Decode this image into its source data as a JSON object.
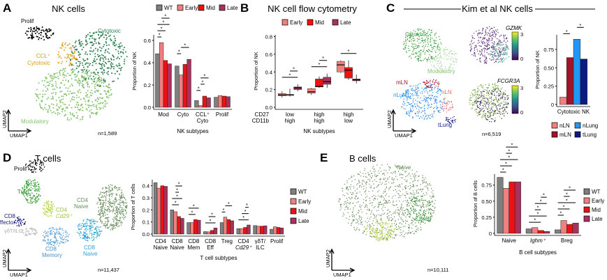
{
  "colors": {
    "WT": "#7f7f7f",
    "Early": "#f08080",
    "Mid": "#ee1111",
    "Late": "#a8325e",
    "nLN": "#f08080",
    "mLN": "#a0142a",
    "nLung": "#2196f3",
    "tLung": "#0d1a82"
  },
  "panels": {
    "A": {
      "letter": "A",
      "title": "NK cells",
      "n": "n=1,589",
      "umap_x": "UMAP1",
      "umap_y": "UMAP2",
      "clusters": {
        "prolif": "Prolif",
        "ccl1": "CCL⁺",
        "ccl2": "Cytotoxic",
        "cyto": "Cytotoxic",
        "mod": "Modulatory"
      }
    },
    "B": {
      "letter": "B",
      "title": "NK cell flow cytometry"
    },
    "C": {
      "letter": "C",
      "title": "Kim et al NK cells",
      "n": "n=6,519",
      "umap_x": "UMAP1",
      "umap_y": "UMAP2",
      "clusters": {
        "cyto": "Cytotoxic",
        "mod": "Modulatory",
        "mLN": "mLN",
        "nLung": "nLung",
        "nLN": "nLN",
        "tLung": "tLung"
      },
      "genes": [
        "GZMK",
        "FCGR3A"
      ],
      "colorbar_ticks": [
        "3",
        "0"
      ]
    },
    "D": {
      "letter": "D",
      "title": "T cells",
      "n": "n=11,437",
      "umap_x": "UMAP1",
      "umap_y": "UMAP2",
      "clusters": {
        "prolif": "Prolif",
        "treg": "Treg",
        "cd8eff1": "CD8",
        "cd8eff2": "Effector",
        "cd4cd29a": "CD4",
        "cd4cd29b": "Cd29⁺",
        "gdt": "γδT/ILC",
        "cd8mem1": "CD8",
        "cd8mem2": "Memory",
        "cd4n1": "CD4",
        "cd4n2": "Naive",
        "cd8n1": "CD8",
        "cd8n2": "Naive"
      }
    },
    "E": {
      "letter": "E",
      "title": "B cells",
      "n": "n=10,111",
      "umap_x": "UMAP1",
      "umap_y": "UMAP2",
      "clusters": {
        "naive": "Naive",
        "breg": "Breg",
        "ighm": "Ighm⁺"
      }
    }
  },
  "chart_data": [
    {
      "id": "A",
      "type": "bar",
      "xlabel": "NK subtypes",
      "ylabel": "Proportion of NK",
      "ylim": [
        0,
        0.65
      ],
      "yticks": [
        0,
        0.2,
        0.4,
        0.6
      ],
      "ytick_labels": [
        "0.0",
        "0.2",
        "0.4",
        "0.6"
      ],
      "legend": "top",
      "categories": [
        "Mod",
        "Cyto",
        "CCL⁺\nCyto",
        "Prolif"
      ],
      "series": [
        {
          "name": "WT",
          "values": [
            0.48,
            0.37,
            0.06,
            0.09
          ]
        },
        {
          "name": "Early",
          "values": [
            0.58,
            0.29,
            0.015,
            0.105
          ]
        },
        {
          "name": "Mid",
          "values": [
            0.42,
            0.385,
            0.1,
            0.1
          ]
        },
        {
          "name": "Late",
          "values": [
            0.39,
            0.43,
            0.085,
            0.095
          ]
        }
      ],
      "significance": [
        [
          0,
          0,
          1
        ],
        [
          0,
          0,
          2
        ],
        [
          0,
          0,
          3
        ],
        [
          0,
          1,
          3
        ],
        [
          1,
          0,
          1
        ],
        [
          1,
          1,
          3
        ],
        [
          2,
          0,
          1
        ],
        [
          2,
          1,
          2
        ],
        [
          2,
          1,
          3
        ]
      ]
    },
    {
      "id": "B",
      "type": "box",
      "xlabel": "NK subtypes",
      "ylabel": "Proportion of NK",
      "ylim": [
        0,
        0.82
      ],
      "yticks": [
        0,
        0.2,
        0.4,
        0.6,
        0.8
      ],
      "ytick_labels": [
        "0.0",
        "0.2",
        "0.4",
        "0.6",
        "0.8"
      ],
      "legend": "top",
      "row_labels": [
        "CD27",
        "CD11b"
      ],
      "categories": [
        "low\nhigh",
        "high\nhigh",
        "high\nlow"
      ],
      "series": [
        {
          "name": "Early",
          "boxes": [
            {
              "min": 0.11,
              "q1": 0.13,
              "median": 0.14,
              "q3": 0.155,
              "max": 0.18
            },
            {
              "min": 0.14,
              "q1": 0.16,
              "median": 0.175,
              "q3": 0.21,
              "max": 0.22
            },
            {
              "min": 0.39,
              "q1": 0.4,
              "median": 0.48,
              "q3": 0.52,
              "max": 0.53
            }
          ]
        },
        {
          "name": "Mid",
          "boxes": [
            {
              "min": 0.12,
              "q1": 0.135,
              "median": 0.14,
              "q3": 0.145,
              "max": 0.21
            },
            {
              "min": 0.22,
              "q1": 0.23,
              "median": 0.235,
              "q3": 0.32,
              "max": 0.35
            },
            {
              "min": 0.31,
              "q1": 0.33,
              "median": 0.42,
              "q3": 0.45,
              "max": 0.53
            }
          ]
        },
        {
          "name": "Late",
          "boxes": [
            {
              "min": 0.18,
              "q1": 0.2,
              "median": 0.22,
              "q3": 0.23,
              "max": 0.26
            },
            {
              "min": 0.22,
              "q1": 0.26,
              "median": 0.29,
              "q3": 0.34,
              "max": 0.38
            },
            {
              "min": 0.27,
              "q1": 0.3,
              "median": 0.31,
              "q3": 0.32,
              "max": 0.37
            }
          ]
        }
      ],
      "significance": [
        [
          0,
          0,
          2
        ],
        [
          0,
          1,
          2
        ],
        [
          1,
          0,
          2
        ],
        [
          1,
          1,
          2
        ],
        [
          2,
          0,
          2
        ]
      ]
    },
    {
      "id": "C",
      "type": "bar",
      "xlabel": "",
      "ylabel": "Proportion of NK",
      "ylim": [
        0,
        0.95
      ],
      "yticks": [
        0,
        0.25,
        0.5,
        0.75
      ],
      "ytick_labels": [
        "0",
        "0.25",
        "0.50",
        "0.75"
      ],
      "legend": "bottom",
      "categories": [
        "Cytotoxic NK"
      ],
      "series": [
        {
          "name": "nLN",
          "values": [
            0.1
          ]
        },
        {
          "name": "mLN",
          "values": [
            0.64
          ]
        },
        {
          "name": "nLung",
          "values": [
            0.89
          ]
        },
        {
          "name": "tLung",
          "values": [
            0.62
          ]
        }
      ],
      "significance": [
        [
          0,
          0,
          1
        ],
        [
          0,
          2,
          3
        ]
      ]
    },
    {
      "id": "D",
      "type": "bar",
      "xlabel": "T cell subtypes",
      "ylabel": "Proportion of T cells",
      "ylim": [
        0,
        0.45
      ],
      "yticks": [
        0,
        0.1,
        0.2,
        0.3,
        0.4
      ],
      "ytick_labels": [
        "0.0",
        "0.1",
        "0.2",
        "0.3",
        "0.4"
      ],
      "legend": "right",
      "categories": [
        "CD4\nNaive",
        "CD8\nNaive",
        "CD8\nMem",
        "CD8\nEff",
        "Treg",
        "CD4\nCd29⁺",
        "γδT/\nILC",
        "Prolif"
      ],
      "series": [
        {
          "name": "WT",
          "values": [
            0.425,
            0.2,
            0.095,
            0.02,
            0.095,
            0.045,
            0.07,
            0.04
          ]
        },
        {
          "name": "Early",
          "values": [
            0.38,
            0.185,
            0.095,
            0.018,
            0.14,
            0.045,
            0.065,
            0.06
          ]
        },
        {
          "name": "Mid",
          "values": [
            0.4,
            0.145,
            0.12,
            0.03,
            0.12,
            0.055,
            0.065,
            0.055
          ]
        },
        {
          "name": "Late",
          "values": [
            0.395,
            0.13,
            0.115,
            0.05,
            0.11,
            0.075,
            0.068,
            0.05
          ]
        }
      ],
      "significance": [
        [
          1,
          0,
          2
        ],
        [
          1,
          0,
          3
        ],
        [
          1,
          1,
          2
        ],
        [
          1,
          1,
          3
        ],
        [
          2,
          0,
          2
        ],
        [
          2,
          0,
          3
        ],
        [
          3,
          0,
          3
        ],
        [
          3,
          1,
          3
        ],
        [
          4,
          0,
          1
        ],
        [
          4,
          1,
          3
        ],
        [
          5,
          0,
          3
        ],
        [
          5,
          1,
          3
        ],
        [
          5,
          2,
          3
        ]
      ]
    },
    {
      "id": "E",
      "type": "bar",
      "xlabel": "B cell subtypes",
      "ylabel": "Proportion of B cells",
      "ylim": [
        0,
        0.92
      ],
      "yticks": [
        0,
        0.25,
        0.5,
        0.75
      ],
      "ytick_labels": [
        "0",
        "0.25",
        "0.50",
        "0.75"
      ],
      "legend": "right",
      "categories": [
        "Naive",
        "Ighm⁺",
        "Breg"
      ],
      "series": [
        {
          "name": "WT",
          "values": [
            0.87,
            0.07,
            0.055
          ]
        },
        {
          "name": "Early",
          "values": [
            0.7,
            0.09,
            0.2
          ]
        },
        {
          "name": "Mid",
          "values": [
            0.8,
            0.045,
            0.14
          ]
        },
        {
          "name": "Late",
          "values": [
            0.8,
            0.03,
            0.16
          ]
        }
      ],
      "significance": [
        [
          0,
          0,
          1
        ],
        [
          0,
          0,
          2
        ],
        [
          0,
          0,
          3
        ],
        [
          0,
          1,
          2
        ],
        [
          0,
          1,
          3
        ],
        [
          1,
          0,
          2
        ],
        [
          1,
          0,
          3
        ],
        [
          1,
          1,
          2
        ],
        [
          1,
          1,
          3
        ],
        [
          1,
          2,
          3
        ],
        [
          2,
          0,
          1
        ],
        [
          2,
          0,
          2
        ],
        [
          2,
          0,
          3
        ],
        [
          2,
          1,
          2
        ],
        [
          2,
          1,
          3
        ]
      ]
    }
  ]
}
